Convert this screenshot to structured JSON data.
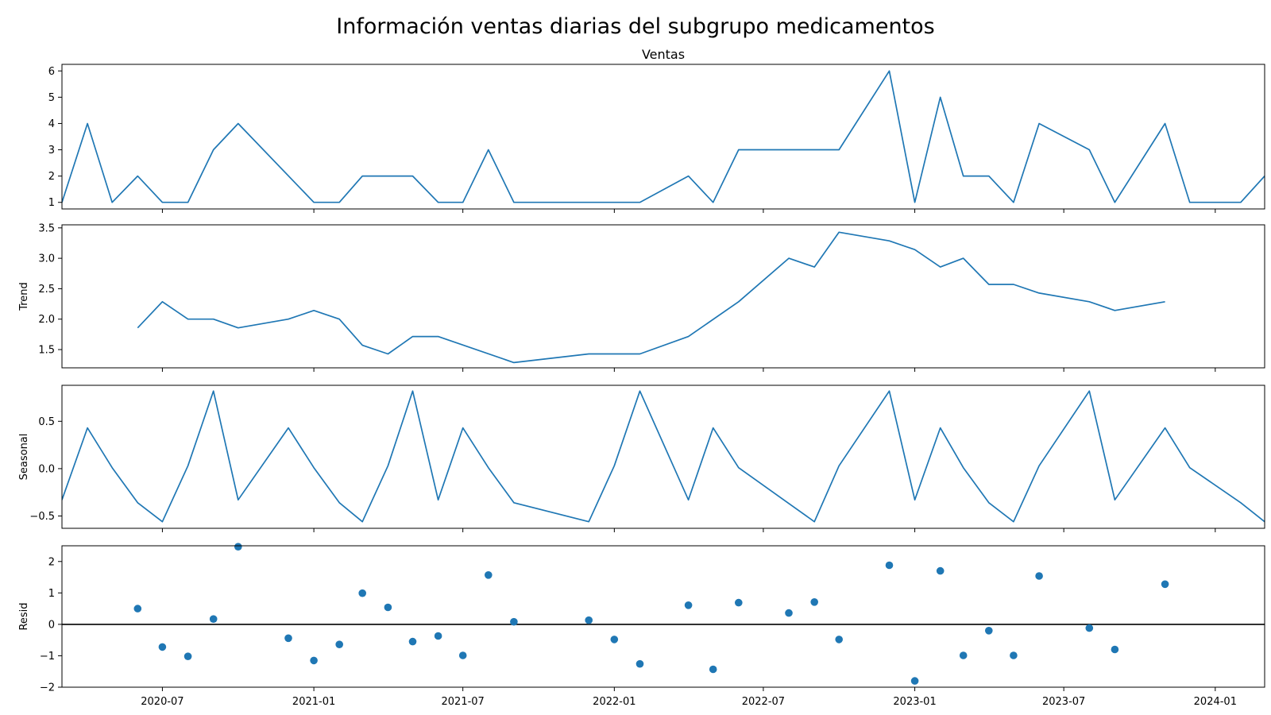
{
  "chart_data": {
    "type": "line",
    "title": "Información ventas diarias del subgrupo medicamentos",
    "x_range": [
      "2020-03-01",
      "2024-03-01"
    ],
    "x_ticks": [
      "2020-07",
      "2021-01",
      "2021-07",
      "2022-01",
      "2022-07",
      "2023-01",
      "2023-07",
      "2024-01"
    ],
    "x_tick_dates": [
      "2020-07-01",
      "2021-01-01",
      "2021-07-01",
      "2022-01-01",
      "2022-07-01",
      "2023-01-01",
      "2023-07-01",
      "2024-01-01"
    ],
    "panels": [
      {
        "key": "ventas",
        "title": "Ventas",
        "ylabel": "",
        "kind": "line",
        "ylim": [
          0.75,
          6.25
        ],
        "yticks": [
          1,
          2,
          3,
          4,
          5,
          6
        ],
        "ytick_labels": [
          "1",
          "2",
          "3",
          "4",
          "5",
          "6"
        ],
        "points": [
          [
            "2020-03-01",
            1
          ],
          [
            "2020-04-01",
            4
          ],
          [
            "2020-05-01",
            1
          ],
          [
            "2020-06-01",
            2
          ],
          [
            "2020-07-01",
            1
          ],
          [
            "2020-08-01",
            1
          ],
          [
            "2020-09-01",
            3
          ],
          [
            "2020-10-01",
            4
          ],
          [
            "2021-01-01",
            1
          ],
          [
            "2021-02-01",
            1
          ],
          [
            "2021-03-01",
            2
          ],
          [
            "2021-04-01",
            2
          ],
          [
            "2021-05-01",
            2
          ],
          [
            "2021-06-01",
            1
          ],
          [
            "2021-07-01",
            1
          ],
          [
            "2021-08-01",
            3
          ],
          [
            "2021-09-01",
            1
          ],
          [
            "2022-02-01",
            1
          ],
          [
            "2022-04-01",
            2
          ],
          [
            "2022-05-01",
            1
          ],
          [
            "2022-06-01",
            3
          ],
          [
            "2022-10-01",
            3
          ],
          [
            "2022-12-01",
            6
          ],
          [
            "2023-01-01",
            1
          ],
          [
            "2023-02-01",
            5
          ],
          [
            "2023-03-01",
            2
          ],
          [
            "2023-04-01",
            2
          ],
          [
            "2023-05-01",
            1
          ],
          [
            "2023-06-01",
            4
          ],
          [
            "2023-08-01",
            3
          ],
          [
            "2023-09-01",
            1
          ],
          [
            "2023-11-01",
            4
          ],
          [
            "2023-12-01",
            1
          ],
          [
            "2024-02-01",
            1
          ],
          [
            "2024-03-01",
            2
          ]
        ]
      },
      {
        "key": "trend",
        "title": "",
        "ylabel": "Trend",
        "kind": "line",
        "ylim": [
          1.2,
          3.55
        ],
        "yticks": [
          1.5,
          2.0,
          2.5,
          3.0,
          3.5
        ],
        "ytick_labels": [
          "1.5",
          "2.0",
          "2.5",
          "3.0",
          "3.5"
        ],
        "points": [
          [
            "2020-06-01",
            1.857
          ],
          [
            "2020-07-01",
            2.286
          ],
          [
            "2020-08-01",
            2.0
          ],
          [
            "2020-09-01",
            2.0
          ],
          [
            "2020-10-01",
            1.857
          ],
          [
            "2020-12-01",
            2.0
          ],
          [
            "2021-01-01",
            2.143
          ],
          [
            "2021-02-01",
            2.0
          ],
          [
            "2021-03-01",
            1.571
          ],
          [
            "2021-04-01",
            1.429
          ],
          [
            "2021-05-01",
            1.714
          ],
          [
            "2021-06-01",
            1.714
          ],
          [
            "2021-09-01",
            1.286
          ],
          [
            "2021-12-01",
            1.429
          ],
          [
            "2022-02-01",
            1.429
          ],
          [
            "2022-04-01",
            1.714
          ],
          [
            "2022-06-01",
            2.286
          ],
          [
            "2022-08-01",
            3.0
          ],
          [
            "2022-09-01",
            2.857
          ],
          [
            "2022-10-01",
            3.429
          ],
          [
            "2022-12-01",
            3.286
          ],
          [
            "2023-01-01",
            3.143
          ],
          [
            "2023-02-01",
            2.857
          ],
          [
            "2023-03-01",
            3.0
          ],
          [
            "2023-04-01",
            2.571
          ],
          [
            "2023-05-01",
            2.571
          ],
          [
            "2023-06-01",
            2.429
          ],
          [
            "2023-08-01",
            2.286
          ],
          [
            "2023-09-01",
            2.143
          ],
          [
            "2023-11-01",
            2.286
          ]
        ]
      },
      {
        "key": "seasonal",
        "title": "",
        "ylabel": "Seasonal",
        "kind": "line",
        "ylim": [
          -0.63,
          0.88
        ],
        "yticks": [
          -0.5,
          0.0,
          0.5
        ],
        "ytick_labels": [
          "−0.5",
          "0.0",
          "0.5"
        ],
        "points": [
          [
            "2020-03-01",
            -0.33
          ],
          [
            "2020-04-01",
            0.43
          ],
          [
            "2020-05-01",
            0.01
          ],
          [
            "2020-06-01",
            -0.36
          ],
          [
            "2020-07-01",
            -0.56
          ],
          [
            "2020-08-01",
            0.03
          ],
          [
            "2020-09-01",
            0.82
          ],
          [
            "2020-10-01",
            -0.33
          ],
          [
            "2020-12-01",
            0.43
          ],
          [
            "2021-01-01",
            0.01
          ],
          [
            "2021-02-01",
            -0.36
          ],
          [
            "2021-03-01",
            -0.56
          ],
          [
            "2021-04-01",
            0.03
          ],
          [
            "2021-05-01",
            0.82
          ],
          [
            "2021-06-01",
            -0.33
          ],
          [
            "2021-07-01",
            0.43
          ],
          [
            "2021-08-01",
            0.01
          ],
          [
            "2021-09-01",
            -0.36
          ],
          [
            "2021-12-01",
            -0.56
          ],
          [
            "2022-01-01",
            0.03
          ],
          [
            "2022-02-01",
            0.82
          ],
          [
            "2022-04-01",
            -0.33
          ],
          [
            "2022-05-01",
            0.43
          ],
          [
            "2022-06-01",
            0.01
          ],
          [
            "2022-09-01",
            -0.56
          ],
          [
            "2022-10-01",
            0.03
          ],
          [
            "2022-12-01",
            0.82
          ],
          [
            "2023-01-01",
            -0.33
          ],
          [
            "2023-02-01",
            0.43
          ],
          [
            "2023-03-01",
            0.01
          ],
          [
            "2023-04-01",
            -0.36
          ],
          [
            "2023-05-01",
            -0.56
          ],
          [
            "2023-06-01",
            0.03
          ],
          [
            "2023-08-01",
            0.82
          ],
          [
            "2023-09-01",
            -0.33
          ],
          [
            "2023-11-01",
            0.43
          ],
          [
            "2023-12-01",
            0.01
          ],
          [
            "2024-02-01",
            -0.36
          ],
          [
            "2024-03-01",
            -0.56
          ]
        ]
      },
      {
        "key": "resid",
        "title": "",
        "ylabel": "Resid",
        "kind": "scatter",
        "ylim": [
          -2.0,
          2.5
        ],
        "yticks": [
          -2,
          -1,
          0,
          1,
          2
        ],
        "ytick_labels": [
          "−2",
          "−1",
          "0",
          "1",
          "2"
        ],
        "zero_line": true,
        "points": [
          [
            "2020-06-01",
            0.5
          ],
          [
            "2020-07-01",
            -0.72
          ],
          [
            "2020-08-01",
            -1.02
          ],
          [
            "2020-09-01",
            0.17
          ],
          [
            "2020-10-01",
            2.47
          ],
          [
            "2020-12-01",
            -0.44
          ],
          [
            "2021-01-01",
            -1.15
          ],
          [
            "2021-02-01",
            -0.64
          ],
          [
            "2021-03-01",
            0.99
          ],
          [
            "2021-04-01",
            0.54
          ],
          [
            "2021-05-01",
            -0.55
          ],
          [
            "2021-06-01",
            -0.37
          ],
          [
            "2021-07-01",
            -0.99
          ],
          [
            "2021-08-01",
            1.57
          ],
          [
            "2021-09-01",
            0.08
          ],
          [
            "2021-12-01",
            0.13
          ],
          [
            "2022-01-01",
            -0.48
          ],
          [
            "2022-02-01",
            -1.26
          ],
          [
            "2022-04-01",
            0.61
          ],
          [
            "2022-05-01",
            -1.43
          ],
          [
            "2022-06-01",
            0.69
          ],
          [
            "2022-08-01",
            0.36
          ],
          [
            "2022-09-01",
            0.71
          ],
          [
            "2022-10-01",
            -0.48
          ],
          [
            "2022-12-01",
            1.88
          ],
          [
            "2023-01-01",
            -1.8
          ],
          [
            "2023-02-01",
            1.7
          ],
          [
            "2023-03-01",
            -0.99
          ],
          [
            "2023-04-01",
            -0.2
          ],
          [
            "2023-05-01",
            -0.99
          ],
          [
            "2023-06-01",
            1.54
          ],
          [
            "2023-08-01",
            -0.12
          ],
          [
            "2023-09-01",
            -0.8
          ],
          [
            "2023-11-01",
            1.28
          ]
        ]
      }
    ],
    "color": "#1f77b4"
  }
}
